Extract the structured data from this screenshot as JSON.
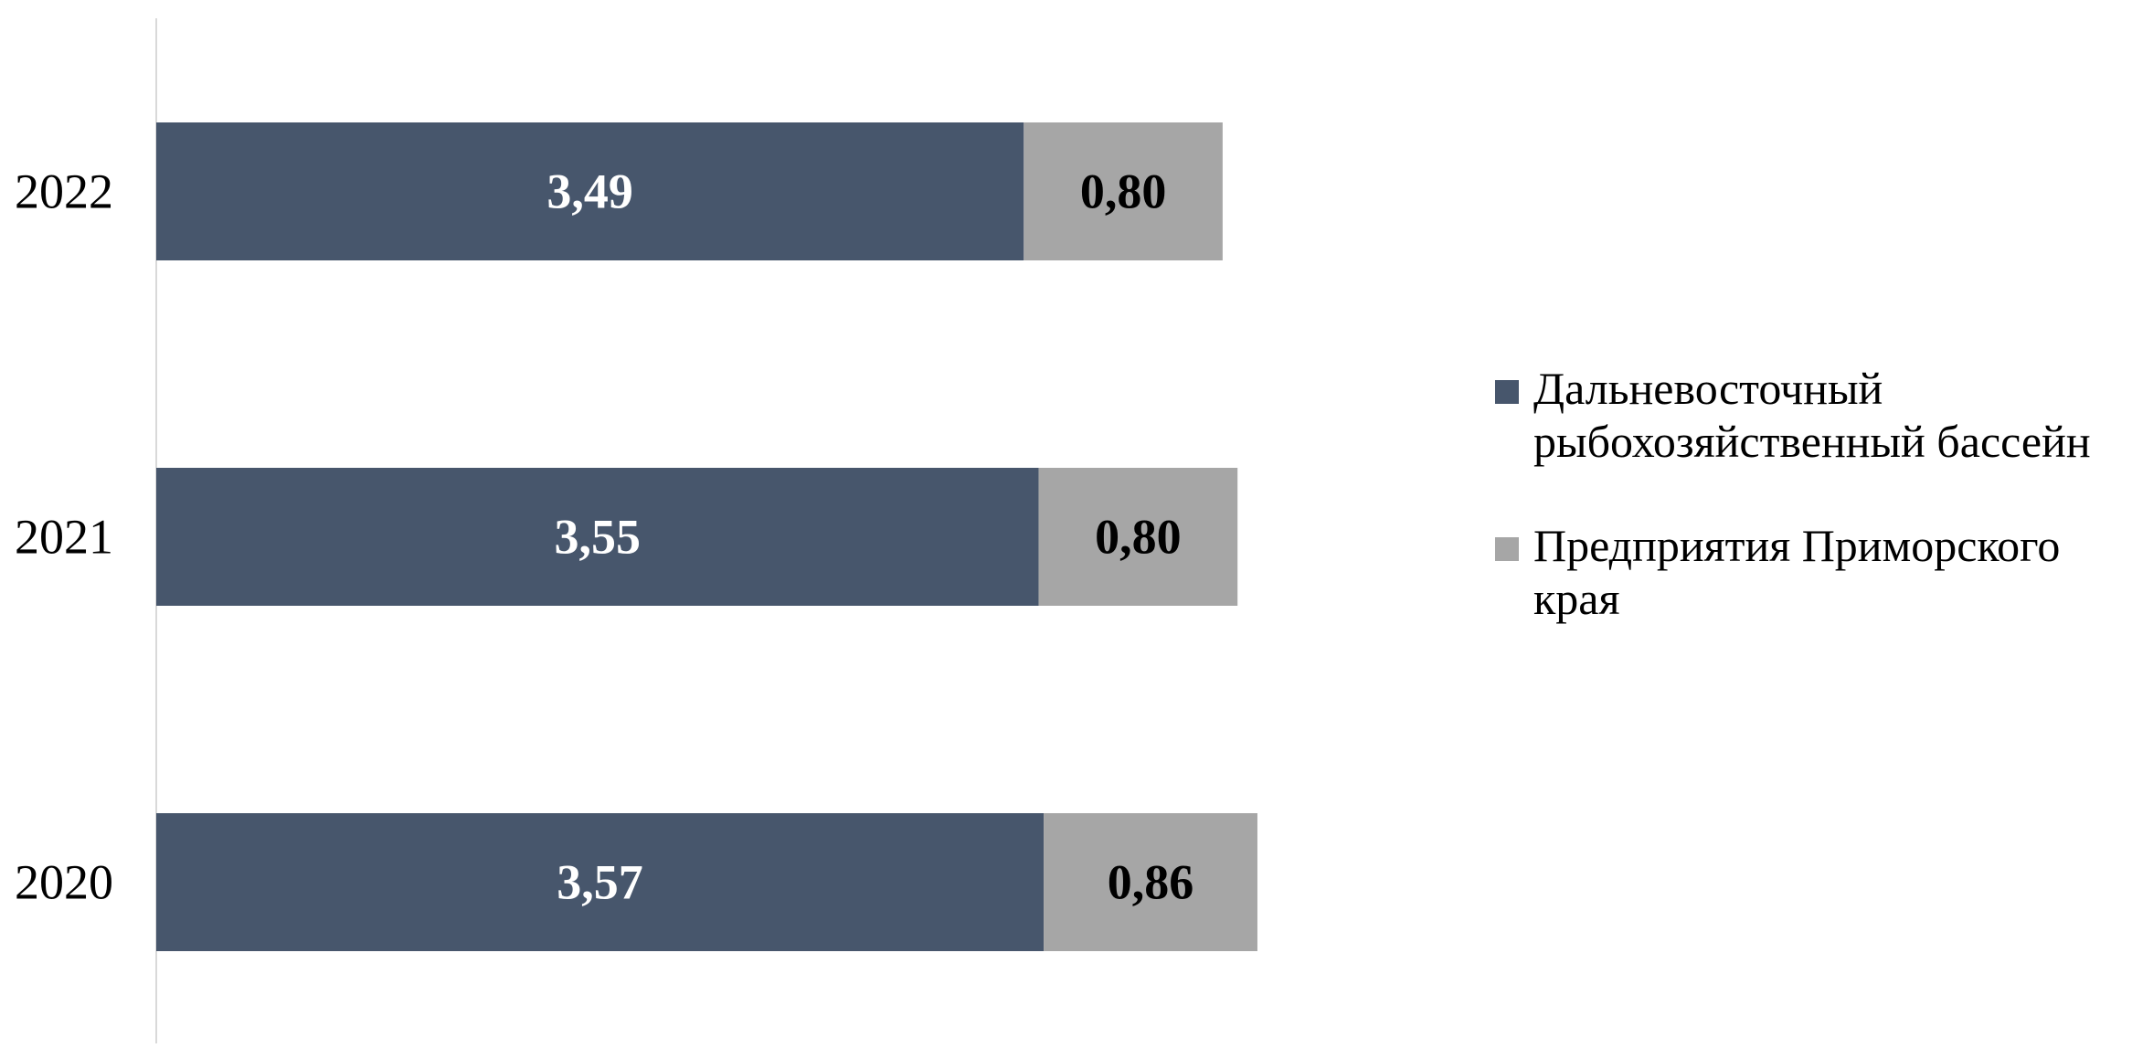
{
  "chart_data": {
    "type": "bar",
    "orientation": "horizontal",
    "stacked": true,
    "categories": [
      "2022",
      "2021",
      "2020"
    ],
    "series": [
      {
        "name": "Дальневосточный рыбохозяйственный бассейн",
        "values": [
          3.49,
          3.55,
          3.57
        ],
        "labels": [
          "3,49",
          "3,55",
          "3,57"
        ],
        "color": "#47566c",
        "label_color": "#ffffff"
      },
      {
        "name": "Предприятия Приморского края",
        "values": [
          0.8,
          0.8,
          0.86
        ],
        "labels": [
          "0,80",
          "0,80",
          "0,86"
        ],
        "color": "#a6a6a6",
        "label_color": "#000000"
      }
    ],
    "title": "",
    "xlabel": "",
    "ylabel": "",
    "xlim": [
      0,
      4.4
    ],
    "grid": false,
    "legend_position": "right",
    "axis_color": "#d9d9d9"
  }
}
